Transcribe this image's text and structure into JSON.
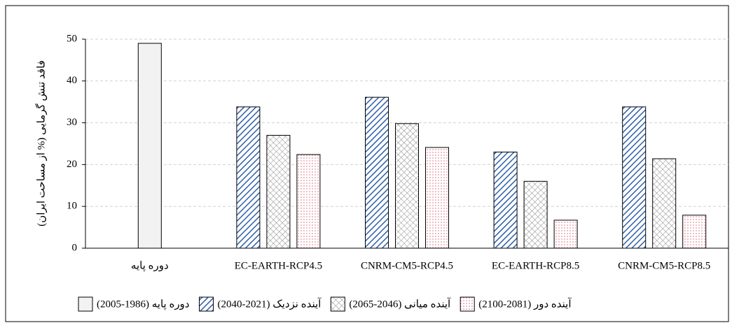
{
  "chart_data": {
    "type": "bar",
    "y_label": "فاقد تنش گرمایی (% از مساحت ایران)",
    "categories": [
      "دوره پایه",
      "EC-EARTH-RCP4.5",
      "CNRM-CM5-RCP4.5",
      "EC-EARTH-RCP8.5",
      "CNRM-CM5-RCP8.5"
    ],
    "series": [
      {
        "name": "دوره پایه (1986-2005)",
        "color": "#f2f2f2",
        "pattern": "solid",
        "values": [
          49,
          null,
          null,
          null,
          null
        ]
      },
      {
        "name": "آینده نزدیک (2021-2040)",
        "color": "#2e5fa8",
        "pattern": "diagonal",
        "values": [
          null,
          33.8,
          36.1,
          23,
          33.8
        ]
      },
      {
        "name": "آینده میانی (2046-2065)",
        "color": "#8a8a8a",
        "pattern": "cross",
        "values": [
          null,
          27,
          29.8,
          16,
          21.4
        ]
      },
      {
        "name": "آینده دور (2081-2100)",
        "color": "#e0707f",
        "pattern": "dots",
        "values": [
          null,
          22.4,
          24.1,
          6.7,
          7.9
        ]
      }
    ],
    "ylim": [
      0,
      50
    ],
    "yticks": [
      0,
      10,
      20,
      30,
      40,
      50
    ],
    "grid": true
  }
}
